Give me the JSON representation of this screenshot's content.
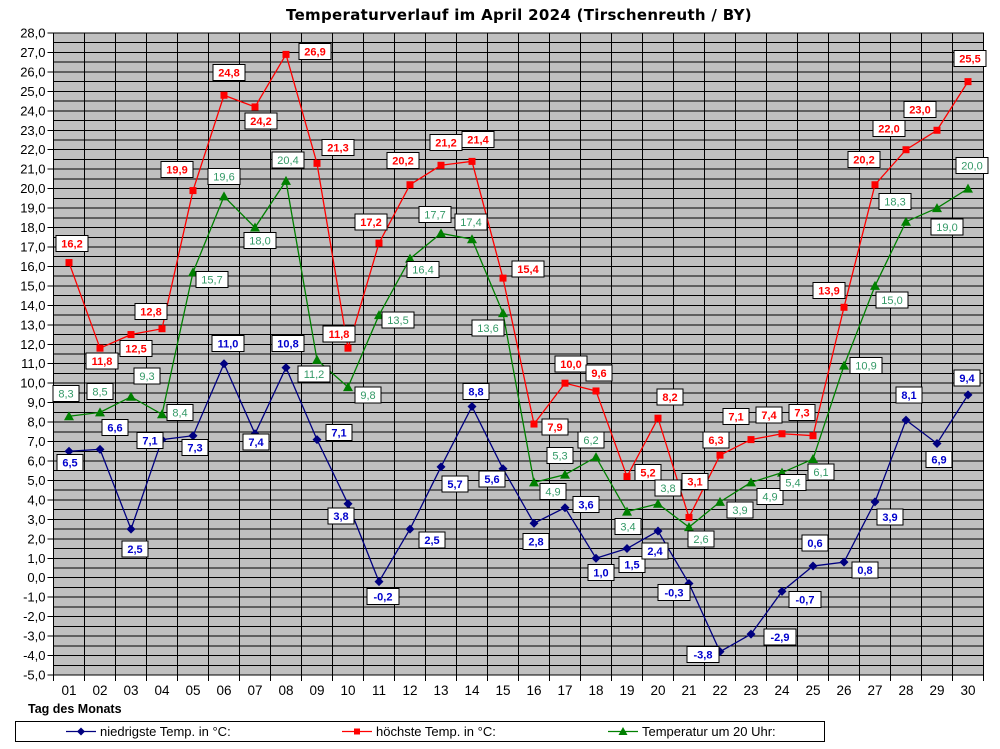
{
  "title": "Temperaturverlauf im April 2024 (Tirschenreuth / BY)",
  "chart_data": {
    "type": "line",
    "title": "Temperaturverlauf im April 2024 (Tirschenreuth / BY)",
    "xlabel": "Tag des Monats",
    "ylabel": "",
    "x": [
      "01",
      "02",
      "03",
      "04",
      "05",
      "06",
      "07",
      "08",
      "09",
      "10",
      "11",
      "12",
      "13",
      "14",
      "15",
      "16",
      "17",
      "18",
      "19",
      "20",
      "21",
      "22",
      "23",
      "24",
      "25",
      "26",
      "27",
      "28",
      "29",
      "30"
    ],
    "ylim": [
      -5.0,
      28.0
    ],
    "y_tick_step": 1.0,
    "y_minor_grid_step": 0.5,
    "decimal_separator": ",",
    "grid": true,
    "plot_bg_color": "#c0c0c0",
    "grid_color": "#000000",
    "legend_position": "bottom",
    "series": [
      {
        "name": "niedrigste Temp. in °C:",
        "marker": "diamond",
        "line_color": "#000080",
        "label_color": "#0000cc",
        "label_bold": true,
        "values": [
          6.5,
          6.6,
          2.5,
          7.1,
          7.3,
          11.0,
          7.4,
          10.8,
          7.1,
          3.8,
          -0.2,
          2.5,
          5.7,
          8.8,
          5.6,
          2.8,
          3.6,
          1.0,
          1.5,
          2.4,
          -0.3,
          -3.8,
          -2.9,
          -0.7,
          0.6,
          0.8,
          3.9,
          8.1,
          6.9,
          9.4
        ],
        "label_offsets": [
          [
            1,
            11
          ],
          [
            15,
            -22
          ],
          [
            4,
            20
          ],
          [
            -12,
            1
          ],
          [
            2,
            12
          ],
          [
            4,
            -20
          ],
          [
            1,
            8
          ],
          [
            2,
            -24
          ],
          [
            22,
            -7
          ],
          [
            -7,
            12
          ],
          [
            4,
            15
          ],
          [
            22,
            11
          ],
          [
            14,
            17
          ],
          [
            4,
            -15
          ],
          [
            -11,
            10
          ],
          [
            2,
            18
          ],
          [
            21,
            -3
          ],
          [
            5,
            14
          ],
          [
            5,
            16
          ],
          [
            -3,
            20
          ],
          [
            -15,
            9
          ],
          [
            -17,
            3
          ],
          [
            29,
            3
          ],
          [
            23,
            8
          ],
          [
            2,
            -23
          ],
          [
            21,
            8
          ],
          [
            15,
            15
          ],
          [
            3,
            -25
          ],
          [
            2,
            16
          ],
          [
            -1,
            -17
          ]
        ]
      },
      {
        "name": "höchste Temp. in °C:",
        "marker": "square",
        "line_color": "#ff0000",
        "label_color": "#ff0000",
        "label_bold": true,
        "values": [
          16.2,
          11.8,
          12.5,
          12.8,
          19.9,
          24.8,
          24.2,
          26.9,
          21.3,
          11.8,
          17.2,
          20.2,
          21.2,
          21.4,
          15.4,
          7.9,
          10.0,
          9.6,
          5.2,
          8.2,
          3.1,
          6.3,
          7.1,
          7.4,
          7.3,
          13.9,
          20.2,
          22.0,
          23.0,
          25.5
        ],
        "label_offsets": [
          [
            3,
            -19
          ],
          [
            2,
            13
          ],
          [
            5,
            14
          ],
          [
            -11,
            -17
          ],
          [
            -16,
            -21
          ],
          [
            5,
            -23
          ],
          [
            6,
            14
          ],
          [
            29,
            -3
          ],
          [
            21,
            -16
          ],
          [
            -9,
            -14
          ],
          [
            -8,
            -21
          ],
          [
            -7,
            -24
          ],
          [
            5,
            -23
          ],
          [
            6,
            -22
          ],
          [
            25,
            -9
          ],
          [
            21,
            3
          ],
          [
            6,
            -19
          ],
          [
            3,
            -18
          ],
          [
            21,
            -4
          ],
          [
            12,
            -21
          ],
          [
            6,
            -36
          ],
          [
            -4,
            -15
          ],
          [
            -15,
            -23
          ],
          [
            -13,
            -19
          ],
          [
            -11,
            -23
          ],
          [
            -15,
            -17
          ],
          [
            -11,
            -25
          ],
          [
            -17,
            -21
          ],
          [
            -17,
            -21
          ],
          [
            2,
            -23
          ]
        ]
      },
      {
        "name": "Temperatur um 20 Uhr:",
        "marker": "triangle",
        "line_color": "#008000",
        "label_color": "#339966",
        "label_bold": false,
        "values": [
          8.3,
          8.5,
          9.3,
          8.4,
          15.7,
          19.6,
          18.0,
          20.4,
          11.2,
          9.8,
          13.5,
          16.4,
          17.7,
          17.4,
          13.6,
          4.9,
          5.3,
          6.2,
          3.4,
          3.8,
          2.6,
          3.9,
          4.9,
          5.4,
          6.1,
          10.9,
          15.0,
          18.3,
          19.0,
          20.0
        ],
        "label_offsets": [
          [
            -3,
            -23
          ],
          [
            0,
            -21
          ],
          [
            16,
            -21
          ],
          [
            18,
            -2
          ],
          [
            19,
            7
          ],
          [
            0,
            -20
          ],
          [
            5,
            13
          ],
          [
            2,
            -21
          ],
          [
            -3,
            14
          ],
          [
            20,
            8
          ],
          [
            19,
            5
          ],
          [
            13,
            11
          ],
          [
            -6,
            -19
          ],
          [
            -1,
            -17
          ],
          [
            -15,
            15
          ],
          [
            19,
            9
          ],
          [
            -5,
            -19
          ],
          [
            -5,
            -17
          ],
          [
            1,
            15
          ],
          [
            10,
            -16
          ],
          [
            12,
            12
          ],
          [
            20,
            8
          ],
          [
            19,
            14
          ],
          [
            11,
            10
          ],
          [
            8,
            13
          ],
          [
            22,
            0
          ],
          [
            17,
            14
          ],
          [
            -11,
            -20
          ],
          [
            10,
            19
          ],
          [
            4,
            -23
          ]
        ]
      }
    ]
  }
}
